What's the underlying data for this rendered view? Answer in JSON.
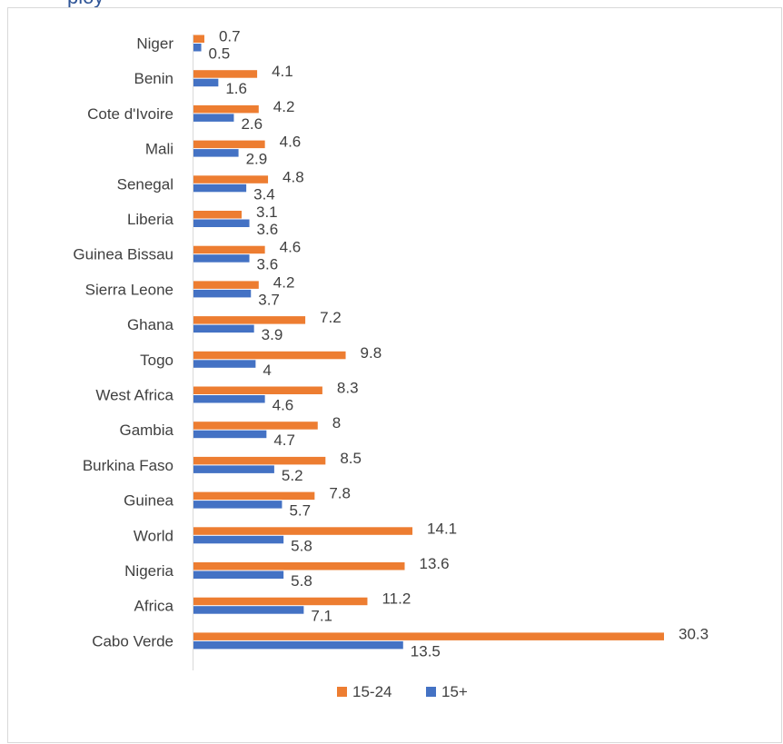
{
  "chart_data": {
    "type": "bar",
    "orientation": "horizontal",
    "categories": [
      "Niger",
      "Benin",
      "Cote d'Ivoire",
      "Mali",
      "Senegal",
      "Liberia",
      "Guinea Bissau",
      "Sierra Leone",
      "Ghana",
      "Togo",
      "West Africa",
      "Gambia",
      "Burkina Faso",
      "Guinea",
      "World",
      "Nigeria",
      "Africa",
      "Cabo Verde"
    ],
    "series": [
      {
        "name": "15-24",
        "color": "#ed7d31",
        "values": [
          0.7,
          4.1,
          4.2,
          4.6,
          4.8,
          3.1,
          4.6,
          4.2,
          7.2,
          9.8,
          8.3,
          8,
          8.5,
          7.8,
          14.1,
          13.6,
          11.2,
          30.3
        ],
        "labels": [
          "0.7",
          "4.1",
          "4.2",
          "4.6",
          "4.8",
          "3.1",
          "4.6",
          "4.2",
          "7.2",
          "9.8",
          "8.3",
          "8",
          "8.5",
          "7.8",
          "14.1",
          "13.6",
          "11.2",
          "30.3"
        ]
      },
      {
        "name": "15+",
        "color": "#4472c4",
        "values": [
          0.5,
          1.6,
          2.6,
          2.9,
          3.4,
          3.6,
          3.6,
          3.7,
          3.9,
          4,
          4.6,
          4.7,
          5.2,
          5.7,
          5.8,
          5.8,
          7.1,
          13.5
        ],
        "labels": [
          "0.5",
          "1.6",
          "2.6",
          "2.9",
          "3.4",
          "3.6",
          "3.6",
          "3.7",
          "3.9",
          "4",
          "4.6",
          "4.7",
          "5.2",
          "5.7",
          "5.8",
          "5.8",
          "7.1",
          "13.5"
        ]
      }
    ],
    "xlim": [
      0,
      30.3
    ],
    "grid": false,
    "legend_position": "bottom",
    "title": "",
    "xlabel": "",
    "ylabel": ""
  },
  "heading_fragment": "ploy",
  "colors": {
    "accent_orange": "#ed7d31",
    "accent_blue": "#4472c4",
    "text": "#404040",
    "heading": "#2f5597"
  }
}
